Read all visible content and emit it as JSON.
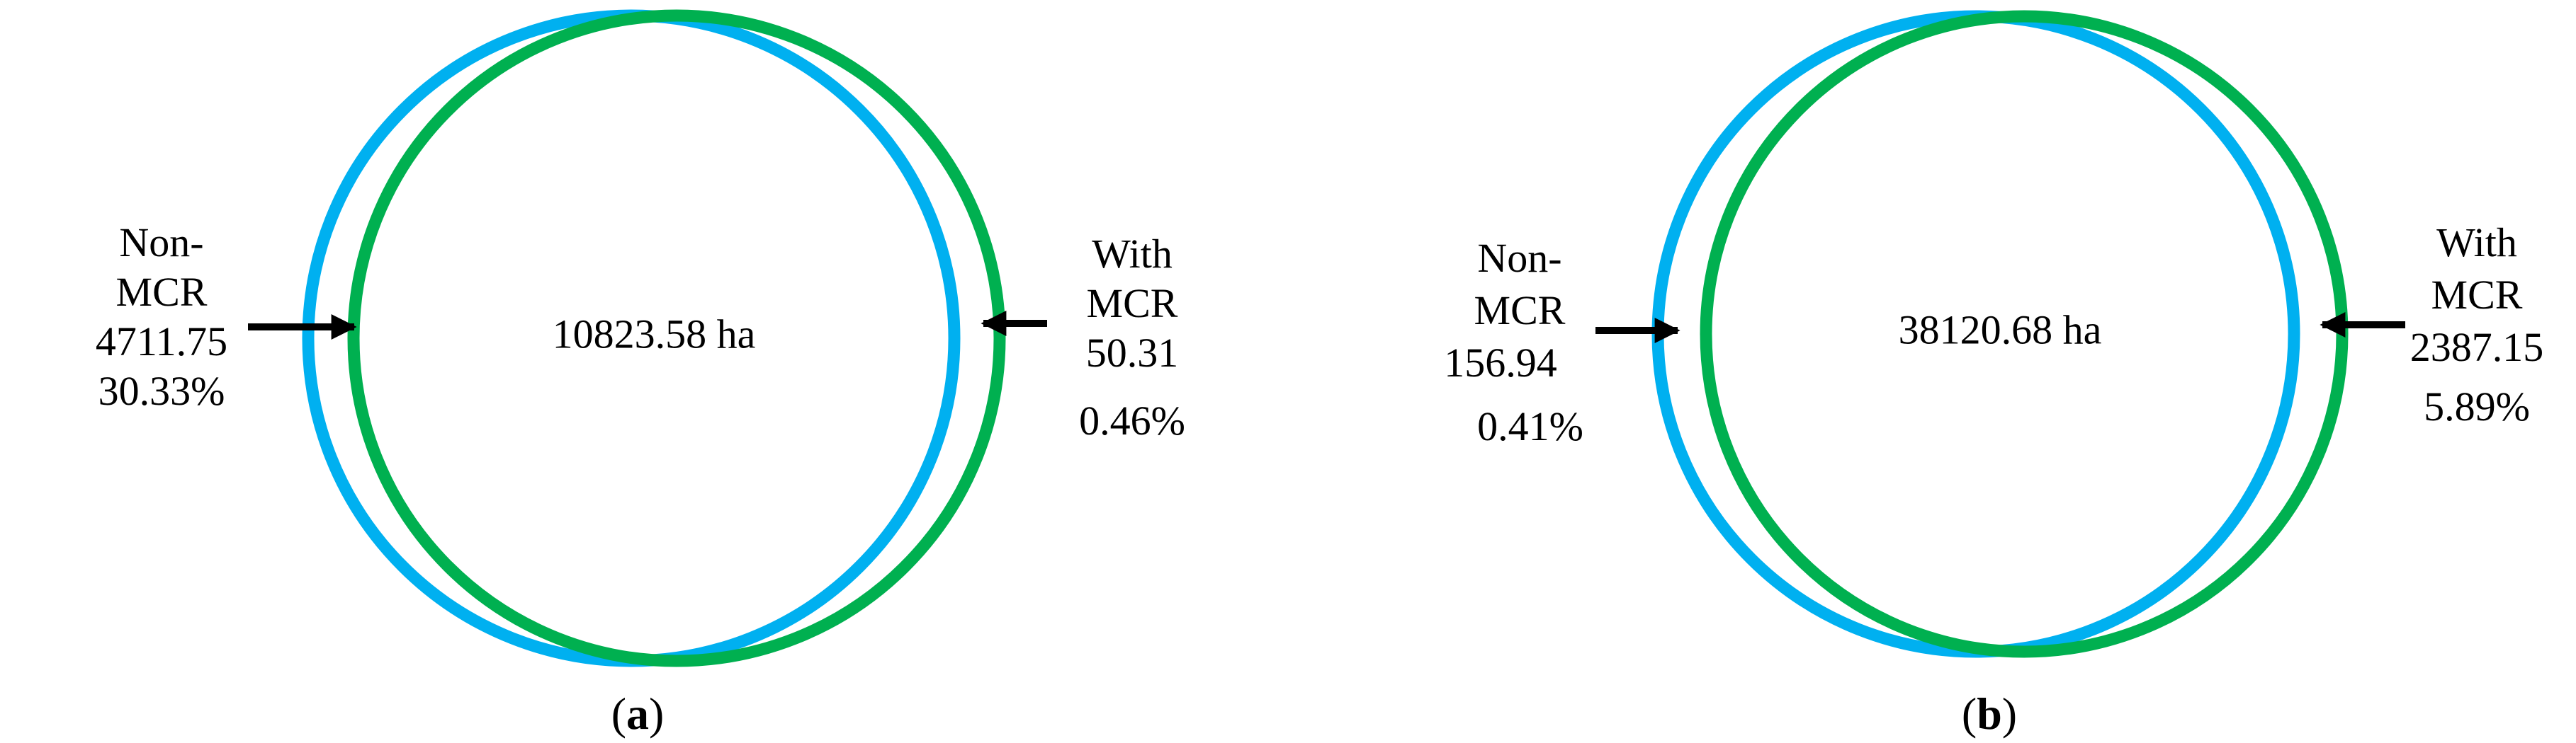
{
  "colors": {
    "non_mcr_circle": "#00b0f0",
    "with_mcr_circle": "#00b050",
    "arrow": "#000000",
    "text": "#000000"
  },
  "panels": [
    {
      "center_value": "10823.58 ha",
      "non_mcr": {
        "line1": "Non-",
        "line2": "MCR",
        "value": "4711.75",
        "percent": "30.33%"
      },
      "with_mcr": {
        "line1": "With",
        "line2": "MCR",
        "value": "50.31",
        "percent": "0.46%"
      },
      "caption": {
        "open": "(",
        "letter": "a",
        "close": ")"
      }
    },
    {
      "center_value": "38120.68 ha",
      "non_mcr": {
        "line1": "Non-",
        "line2": "MCR",
        "value": "156.94",
        "percent": "0.41%"
      },
      "with_mcr": {
        "line1": "With",
        "line2": "MCR",
        "value": "2387.15",
        "percent": "5.89%"
      },
      "caption": {
        "open": "(",
        "letter": "b",
        "close": ")"
      }
    }
  ]
}
